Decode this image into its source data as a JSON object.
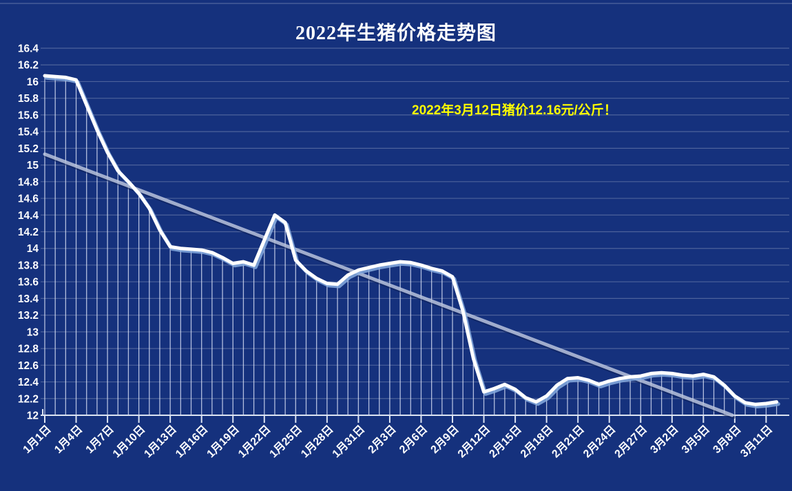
{
  "page": {
    "title": "2022年生猪价格走势图"
  },
  "chart_data": {
    "type": "line",
    "title": "2022年生猪价格走势图",
    "ylabel": "",
    "xlabel": "",
    "unit": "元/公斤",
    "ylim": [
      12,
      16.4
    ],
    "ytick_step": 0.2,
    "x_tick_interval": 3,
    "grid": "horizontal + per-day drop lines",
    "legend": "none",
    "x": [
      "1月1日",
      "1月2日",
      "1月3日",
      "1月4日",
      "1月5日",
      "1月6日",
      "1月7日",
      "1月8日",
      "1月9日",
      "1月10日",
      "1月11日",
      "1月12日",
      "1月13日",
      "1月14日",
      "1月15日",
      "1月16日",
      "1月17日",
      "1月18日",
      "1月19日",
      "1月20日",
      "1月21日",
      "1月22日",
      "1月23日",
      "1月24日",
      "1月25日",
      "1月26日",
      "1月27日",
      "1月28日",
      "1月29日",
      "1月30日",
      "1月31日",
      "2月1日",
      "2月2日",
      "2月3日",
      "2月4日",
      "2月5日",
      "2月6日",
      "2月7日",
      "2月8日",
      "2月9日",
      "2月10日",
      "2月11日",
      "2月12日",
      "2月13日",
      "2月14日",
      "2月15日",
      "2月16日",
      "2月17日",
      "2月18日",
      "2月19日",
      "2月20日",
      "2月21日",
      "2月22日",
      "2月23日",
      "2月24日",
      "2月25日",
      "2月26日",
      "2月27日",
      "2月28日",
      "3月1日",
      "3月2日",
      "3月3日",
      "3月4日",
      "3月5日",
      "3月6日",
      "3月7日",
      "3月8日",
      "3月9日",
      "3月10日",
      "3月11日",
      "3月12日"
    ],
    "series": [
      {
        "name": "生猪价格",
        "values": [
          16.07,
          16.06,
          16.05,
          16.02,
          15.72,
          15.42,
          15.15,
          14.93,
          14.8,
          14.66,
          14.48,
          14.22,
          14.02,
          14.0,
          13.99,
          13.98,
          13.95,
          13.89,
          13.82,
          13.84,
          13.8,
          14.1,
          14.4,
          14.31,
          13.86,
          13.73,
          13.64,
          13.58,
          13.57,
          13.68,
          13.74,
          13.77,
          13.8,
          13.82,
          13.84,
          13.83,
          13.8,
          13.76,
          13.73,
          13.66,
          13.25,
          12.68,
          12.28,
          12.32,
          12.37,
          12.31,
          12.21,
          12.16,
          12.23,
          12.36,
          12.44,
          12.45,
          12.42,
          12.37,
          12.41,
          12.44,
          12.46,
          12.47,
          12.5,
          12.51,
          12.5,
          12.48,
          12.47,
          12.49,
          12.46,
          12.36,
          12.23,
          12.15,
          12.13,
          12.14,
          12.16
        ]
      }
    ],
    "trendline": {
      "description": "linear downward trend line",
      "start_value": 15.13,
      "value_per_day": -0.0476,
      "clipped_at": 12
    },
    "annotation": {
      "text": "2022年3月12日猪价12.16元/公斤！"
    },
    "colors": {
      "background": "#15317d",
      "gridline": "#54689f",
      "line": "#ffffff",
      "line_shadow": "#86abdf",
      "drop_line": "#e8eeff",
      "trendline": "#c3cde4",
      "axis": "#dde4f2",
      "title": "#ffffff",
      "annotation": "#ffff00",
      "tick_label": "#ffffff"
    }
  }
}
